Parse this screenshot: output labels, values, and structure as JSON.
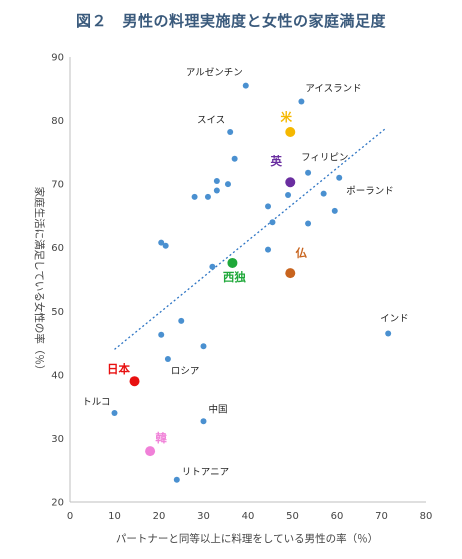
{
  "chart_data": {
    "type": "scatter",
    "title": "図２　男性の料理実施度と女性の家庭満足度",
    "xlabel": "パートナーと同等以上に料理をしている男性の率（％）",
    "ylabel": "家庭生活に満足している女性の率（％）",
    "xlim": [
      0,
      80
    ],
    "ylim": [
      20,
      90
    ],
    "xticks": [
      0,
      10,
      20,
      30,
      40,
      50,
      60,
      70,
      80
    ],
    "yticks": [
      20,
      30,
      40,
      50,
      60,
      70,
      80,
      90
    ],
    "grid": false,
    "trendline": {
      "x": [
        10,
        71
      ],
      "y": [
        44,
        78.8
      ],
      "color": "#2e75c4"
    },
    "default_color": "#4a90d0",
    "points": [
      {
        "x": 39.5,
        "y": 85.5,
        "label": "アルゼンチン",
        "color": "#4a90d0"
      },
      {
        "x": 52,
        "y": 83,
        "label": "アイスランド",
        "color": "#4a90d0"
      },
      {
        "x": 36,
        "y": 78.2,
        "label": "スイス",
        "color": "#4a90d0"
      },
      {
        "x": 37,
        "y": 74,
        "label": "",
        "color": "#4a90d0"
      },
      {
        "x": 53.5,
        "y": 71.8,
        "label": "フィリピン",
        "color": "#4a90d0"
      },
      {
        "x": 60.5,
        "y": 71,
        "label": "ポーランド",
        "color": "#4a90d0"
      },
      {
        "x": 33,
        "y": 70.5,
        "label": "",
        "color": "#4a90d0"
      },
      {
        "x": 35.5,
        "y": 70,
        "label": "",
        "color": "#4a90d0"
      },
      {
        "x": 33,
        "y": 69,
        "label": "",
        "color": "#4a90d0"
      },
      {
        "x": 28,
        "y": 68,
        "label": "",
        "color": "#4a90d0"
      },
      {
        "x": 31,
        "y": 68,
        "label": "",
        "color": "#4a90d0"
      },
      {
        "x": 49,
        "y": 68.3,
        "label": "",
        "color": "#4a90d0"
      },
      {
        "x": 57,
        "y": 68.5,
        "label": "",
        "color": "#4a90d0"
      },
      {
        "x": 44.5,
        "y": 66.5,
        "label": "",
        "color": "#4a90d0"
      },
      {
        "x": 59.5,
        "y": 65.8,
        "label": "",
        "color": "#4a90d0"
      },
      {
        "x": 45.5,
        "y": 64,
        "label": "",
        "color": "#4a90d0"
      },
      {
        "x": 53.5,
        "y": 63.8,
        "label": "",
        "color": "#4a90d0"
      },
      {
        "x": 20.5,
        "y": 60.8,
        "label": "",
        "color": "#4a90d0"
      },
      {
        "x": 21.5,
        "y": 60.3,
        "label": "",
        "color": "#4a90d0"
      },
      {
        "x": 44.5,
        "y": 59.7,
        "label": "",
        "color": "#4a90d0"
      },
      {
        "x": 32,
        "y": 57,
        "label": "",
        "color": "#4a90d0"
      },
      {
        "x": 25,
        "y": 48.5,
        "label": "",
        "color": "#4a90d0"
      },
      {
        "x": 20.5,
        "y": 46.3,
        "label": "",
        "color": "#4a90d0"
      },
      {
        "x": 30,
        "y": 44.5,
        "label": "",
        "color": "#4a90d0"
      },
      {
        "x": 22,
        "y": 42.5,
        "label": "ロシア",
        "color": "#4a90d0"
      },
      {
        "x": 71.5,
        "y": 46.5,
        "label": "インド",
        "color": "#4a90d0"
      },
      {
        "x": 10,
        "y": 34,
        "label": "トルコ",
        "color": "#4a90d0"
      },
      {
        "x": 30,
        "y": 32.7,
        "label": "中国",
        "color": "#4a90d0"
      },
      {
        "x": 24,
        "y": 23.5,
        "label": "リトアニア",
        "color": "#4a90d0"
      },
      {
        "x": 49.5,
        "y": 78.2,
        "label": "米",
        "color": "#f5b800",
        "highlight": true
      },
      {
        "x": 49.5,
        "y": 70.3,
        "label": "英",
        "color": "#6a2ea0",
        "highlight": true
      },
      {
        "x": 36.5,
        "y": 57.6,
        "label": "西独",
        "color": "#1fa83a",
        "highlight": true
      },
      {
        "x": 49.5,
        "y": 56,
        "label": "仏",
        "color": "#c8641e",
        "highlight": true
      },
      {
        "x": 14.5,
        "y": 39,
        "label": "日本",
        "color": "#e81010",
        "highlight": true
      },
      {
        "x": 18,
        "y": 28,
        "label": "韓",
        "color": "#f080d8",
        "highlight": true
      }
    ]
  }
}
